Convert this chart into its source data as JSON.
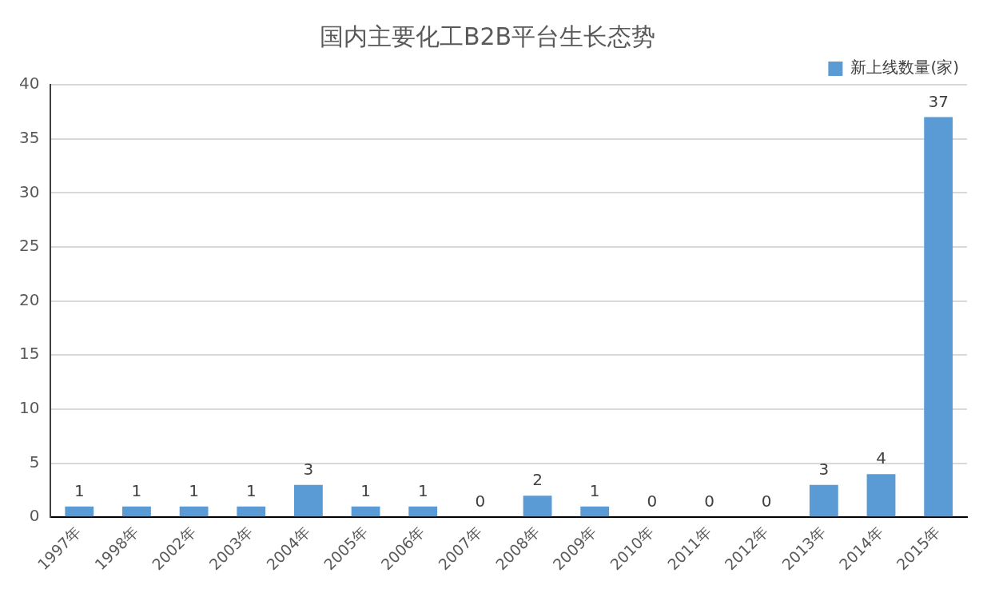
{
  "chart_data": {
    "type": "bar",
    "title": "国内主要化工B2B平台生长态势",
    "categories": [
      "1997年",
      "1998年",
      "2002年",
      "2003年",
      "2004年",
      "2005年",
      "2006年",
      "2007年",
      "2008年",
      "2009年",
      "2010年",
      "2011年",
      "2012年",
      "2013年",
      "2014年",
      "2015年"
    ],
    "series": [
      {
        "name": "新上线数量(家)",
        "color": "#5b9bd5",
        "values": [
          1,
          1,
          1,
          1,
          3,
          1,
          1,
          0,
          2,
          1,
          0,
          0,
          0,
          3,
          4,
          37
        ]
      }
    ],
    "ylim": [
      0,
      40
    ],
    "yticks": [
      0,
      5,
      10,
      15,
      20,
      25,
      30,
      35,
      40
    ],
    "grid": "y",
    "legend": "top right",
    "data_labels": true
  }
}
